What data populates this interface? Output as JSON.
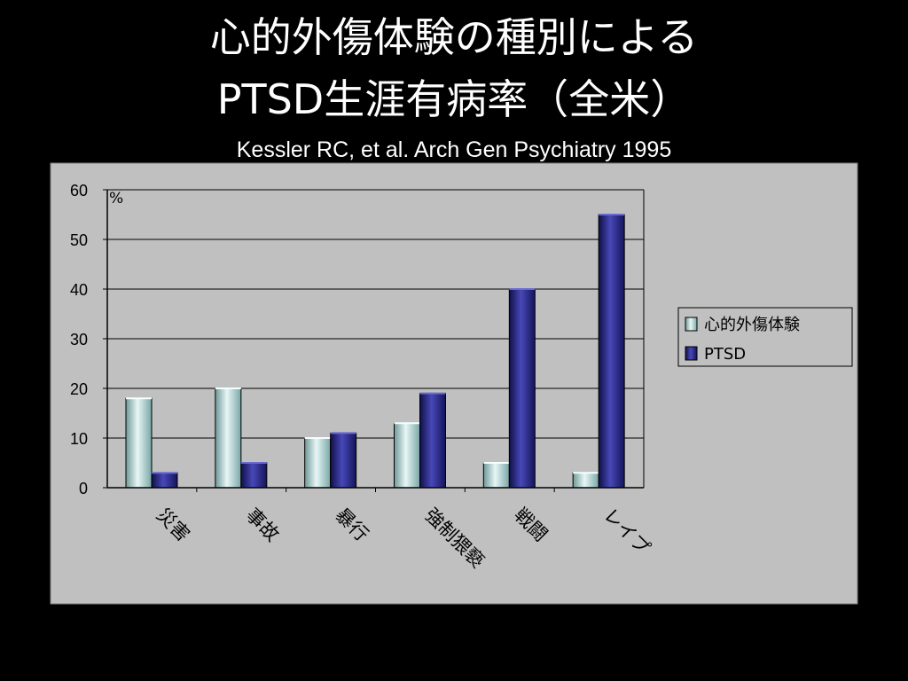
{
  "slide": {
    "title_line1": "心的外傷体験の種別による",
    "title_line2": "PTSD生涯有病率（全米）",
    "citation": "Kessler RC, et al. Arch Gen Psychiatry 1995"
  },
  "chart_data": {
    "type": "bar",
    "categories": [
      "災害",
      "事故",
      "暴行",
      "強制猥褻",
      "戦闘",
      "レイプ"
    ],
    "series": [
      {
        "name": "心的外傷体験",
        "values": [
          18,
          20,
          10,
          13,
          5,
          3
        ],
        "color": "#a9d0d0"
      },
      {
        "name": "PTSD",
        "values": [
          3,
          5,
          11,
          19,
          40,
          55
        ],
        "color": "#2c2c8c"
      }
    ],
    "y_unit": "%",
    "ylim": [
      0,
      60
    ],
    "y_ticks": [
      0,
      10,
      20,
      30,
      40,
      50,
      60
    ],
    "grid": true,
    "legend_position": "right",
    "colors": {
      "panel": "#c0c0c0",
      "plot_area": "#c0c0c0",
      "gridline": "#000000"
    }
  }
}
